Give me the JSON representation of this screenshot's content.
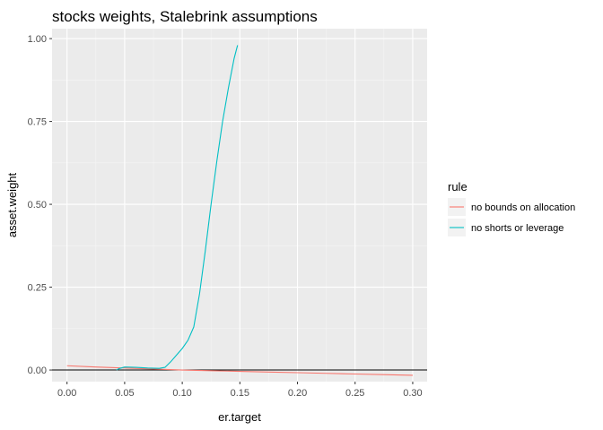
{
  "chart_data": {
    "type": "line",
    "title": "stocks weights, Stalebrink assumptions",
    "xlabel": "er.target",
    "ylabel": "asset.weight",
    "xlim": [
      -0.013,
      0.3125
    ],
    "ylim": [
      -0.035,
      1.03
    ],
    "x_ticks": [
      0.0,
      0.05,
      0.1,
      0.15,
      0.2,
      0.25,
      0.3
    ],
    "x_tick_labels": [
      "0.00",
      "0.05",
      "0.10",
      "0.15",
      "0.20",
      "0.25",
      "0.30"
    ],
    "y_ticks": [
      0.0,
      0.25,
      0.5,
      0.75,
      1.0
    ],
    "y_tick_labels": [
      "0.00",
      "0.25",
      "0.50",
      "0.75",
      "1.00"
    ],
    "hline": 0,
    "grid": true,
    "legend": {
      "title": "rule",
      "placement": "right"
    },
    "series": [
      {
        "name": "no bounds on allocation",
        "color": "#F8766D",
        "x": [
          0.0,
          0.025,
          0.05,
          0.075,
          0.1,
          0.125,
          0.15,
          0.175,
          0.2,
          0.225,
          0.25,
          0.275,
          0.3
        ],
        "y": [
          0.013,
          0.009,
          0.006,
          0.003,
          0.0,
          -0.002,
          -0.004,
          -0.006,
          -0.008,
          -0.01,
          -0.012,
          -0.014,
          -0.016
        ]
      },
      {
        "name": "no shorts or leverage",
        "color": "#00BFC4",
        "x": [
          0.043,
          0.045,
          0.05,
          0.06,
          0.07,
          0.08,
          0.085,
          0.09,
          0.095,
          0.1,
          0.105,
          0.11,
          0.115,
          0.12,
          0.125,
          0.13,
          0.135,
          0.14,
          0.145,
          0.148
        ],
        "y": [
          0.0,
          0.004,
          0.009,
          0.008,
          0.006,
          0.005,
          0.008,
          0.025,
          0.045,
          0.065,
          0.09,
          0.13,
          0.23,
          0.36,
          0.5,
          0.63,
          0.75,
          0.85,
          0.94,
          0.98
        ]
      }
    ]
  }
}
